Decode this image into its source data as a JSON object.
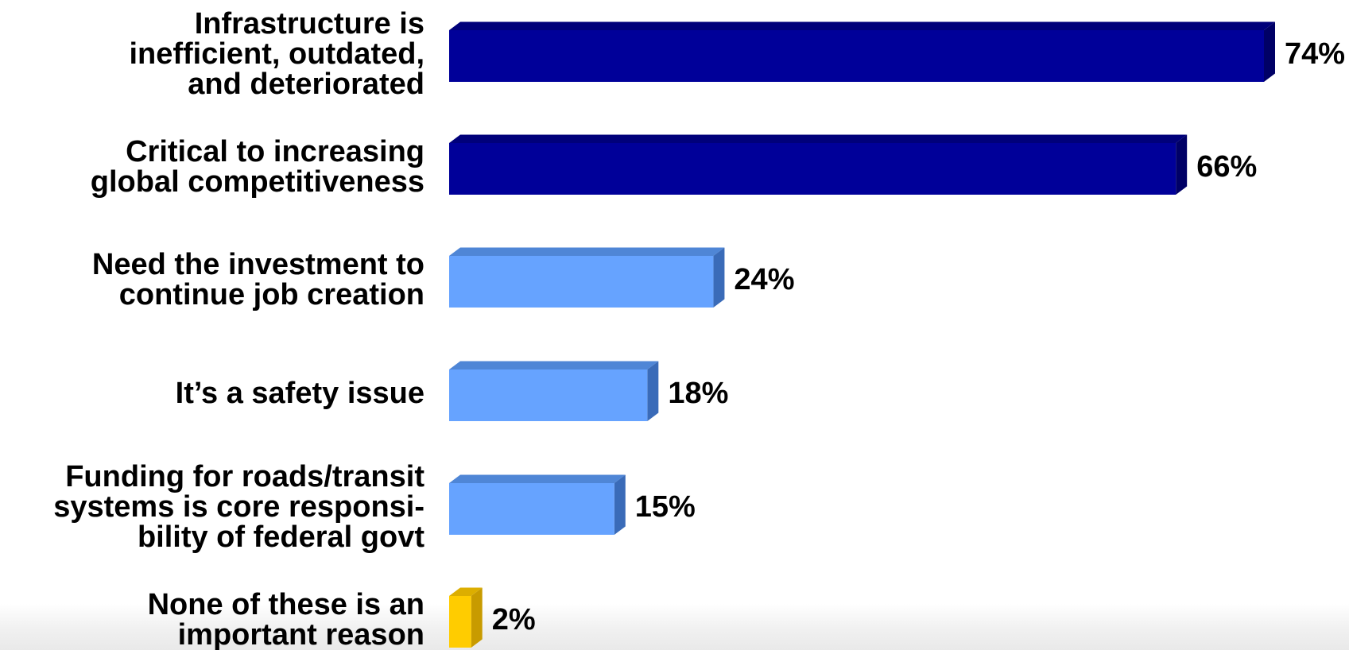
{
  "chart_data": {
    "type": "bar",
    "orientation": "horizontal",
    "style": "3d",
    "categories": [
      [
        "Infrastructure is",
        "inefficient, outdated,",
        "and deteriorated"
      ],
      [
        "Critical to increasing",
        "global competitiveness"
      ],
      [
        "Need the investment to",
        "continue job creation"
      ],
      [
        "It’s a safety issue"
      ],
      [
        "Funding for roads/transit",
        "systems is core responsi-",
        "bility of federal govt"
      ],
      [
        "None of these is an",
        "important reason"
      ]
    ],
    "values": [
      74,
      66,
      24,
      18,
      15,
      2
    ],
    "value_labels": [
      "74%",
      "66%",
      "24%",
      "18%",
      "15%",
      "2%"
    ],
    "colors": [
      "#000099",
      "#000099",
      "#66a3ff",
      "#66a3ff",
      "#66a3ff",
      "#ffcc00"
    ],
    "colors_dark": [
      "#000066",
      "#000066",
      "#3a6bb8",
      "#3a6bb8",
      "#3a6bb8",
      "#c89b00"
    ],
    "colors_top": [
      "#00007a",
      "#00007a",
      "#4f86d6",
      "#4f86d6",
      "#4f86d6",
      "#dcae00"
    ],
    "xlim": [
      0,
      74
    ],
    "grid": false,
    "legend": "none"
  }
}
